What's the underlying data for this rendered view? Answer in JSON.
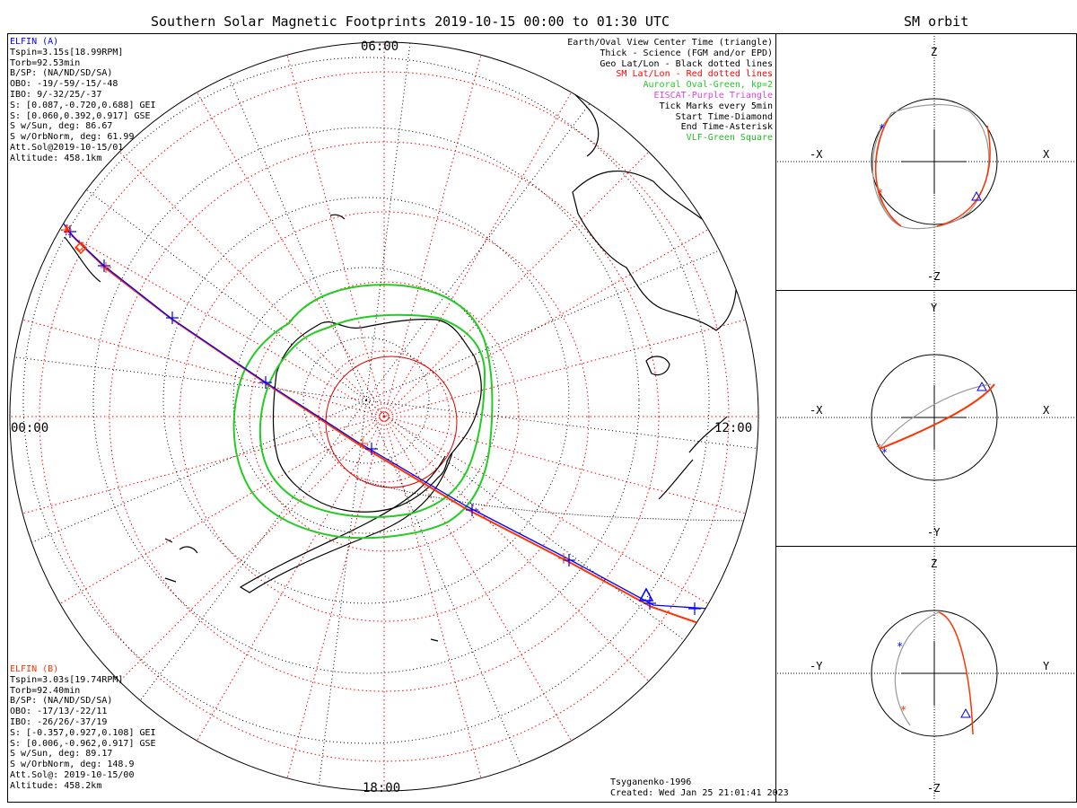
{
  "title": "Southern Solar Magnetic Footprints 2019-10-15 00:00 to 01:30 UTC",
  "right_title": "SM orbit",
  "colors": {
    "a": "#0000ff",
    "b": "#ff3300",
    "sm_grid": "#ff0000",
    "oval": "#22cc22",
    "eiscat": "#dd44dd",
    "vlf": "#22bb22",
    "gray": "#999999"
  },
  "elfin_a": {
    "name": "ELFIN (A)",
    "lines": [
      "Tspin=3.15s[18.99RPM]",
      "Torb=92.53min",
      "B/SP: (NA/ND/SD/SA)",
      "OBO: -19/-59/-15/-48",
      "IBO: 9/-32/25/-37",
      "S: [0.087,-0.720,0.688] GEI",
      "S: [0.060,0.392,0.917] GSE",
      "S w/Sun, deg: 86.67",
      "S w/OrbNorm, deg: 61.99",
      "Att.Sol@2019-10-15/01",
      "Altitude: 458.1km"
    ]
  },
  "elfin_b": {
    "name": "ELFIN (B)",
    "lines": [
      "Tspin=3.03s[19.74RPM]",
      "Torb=92.40min",
      "B/SP: (NA/ND/SD/SA)",
      "OBO: -17/13/-22/11",
      "IBO: -26/26/-37/19",
      "S: [-0.357,0.927,0.108] GEI",
      "S: [0.006,-0.962,0.917] GSE",
      "S w/Sun, deg: 89.17",
      "S w/OrbNorm, deg: 148.9",
      "Att.Sol@: 2019-10-15/00",
      "Altitude: 458.2km"
    ]
  },
  "legend": [
    {
      "text": "Earth/Oval View Center Time (triangle)",
      "color": "#000000"
    },
    {
      "text": "Thick - Science (FGM and/or EPD)",
      "color": "#000000"
    },
    {
      "text": "Geo Lat/Lon - Black dotted lines",
      "color": "#000000"
    },
    {
      "text": "SM Lat/Lon - Red dotted lines",
      "color": "#ff0000"
    },
    {
      "text": "Auroral Oval-Green, kp=2",
      "color": "#22cc22"
    },
    {
      "text": "EISCAT-Purple Triangle",
      "color": "#dd44dd"
    },
    {
      "text": "Tick Marks every 5min",
      "color": "#000000"
    },
    {
      "text": "Start Time-Diamond",
      "color": "#000000"
    },
    {
      "text": "End Time-Asterisk",
      "color": "#000000"
    },
    {
      "text": "VLF-Green Square",
      "color": "#22bb22"
    }
  ],
  "clock": {
    "top": "06:00",
    "left": "00:00",
    "right": "12:00",
    "bottom": "18:00"
  },
  "footer": {
    "model": "Tsyganenko-1996",
    "created": "Created: Wed Jan 25 21:01:41 2023"
  },
  "panels": [
    {
      "up": "Z",
      "down": "-Z",
      "left": "-X",
      "right": "X"
    },
    {
      "up": "Y",
      "down": "-Y",
      "left": "-X",
      "right": "X"
    },
    {
      "up": "Z",
      "down": "-Z",
      "left": "-Y",
      "right": "Y"
    }
  ],
  "chart_data": {
    "type": "scatter",
    "title": "Southern Solar Magnetic Footprints 2019-10-15 00:00 to 01:30 UTC",
    "projection": "south polar stereographic, SM coordinates",
    "time_range": [
      "2019-10-15 00:00",
      "2019-10-15 01:30"
    ],
    "tick_interval_min": 5,
    "series": [
      {
        "name": "ELFIN (A)",
        "color": "#0000ff"
      },
      {
        "name": "ELFIN (B)",
        "color": "#ff3300"
      }
    ],
    "auroral_oval_kp": 2,
    "magnetic_model": "Tsyganenko-1996"
  }
}
